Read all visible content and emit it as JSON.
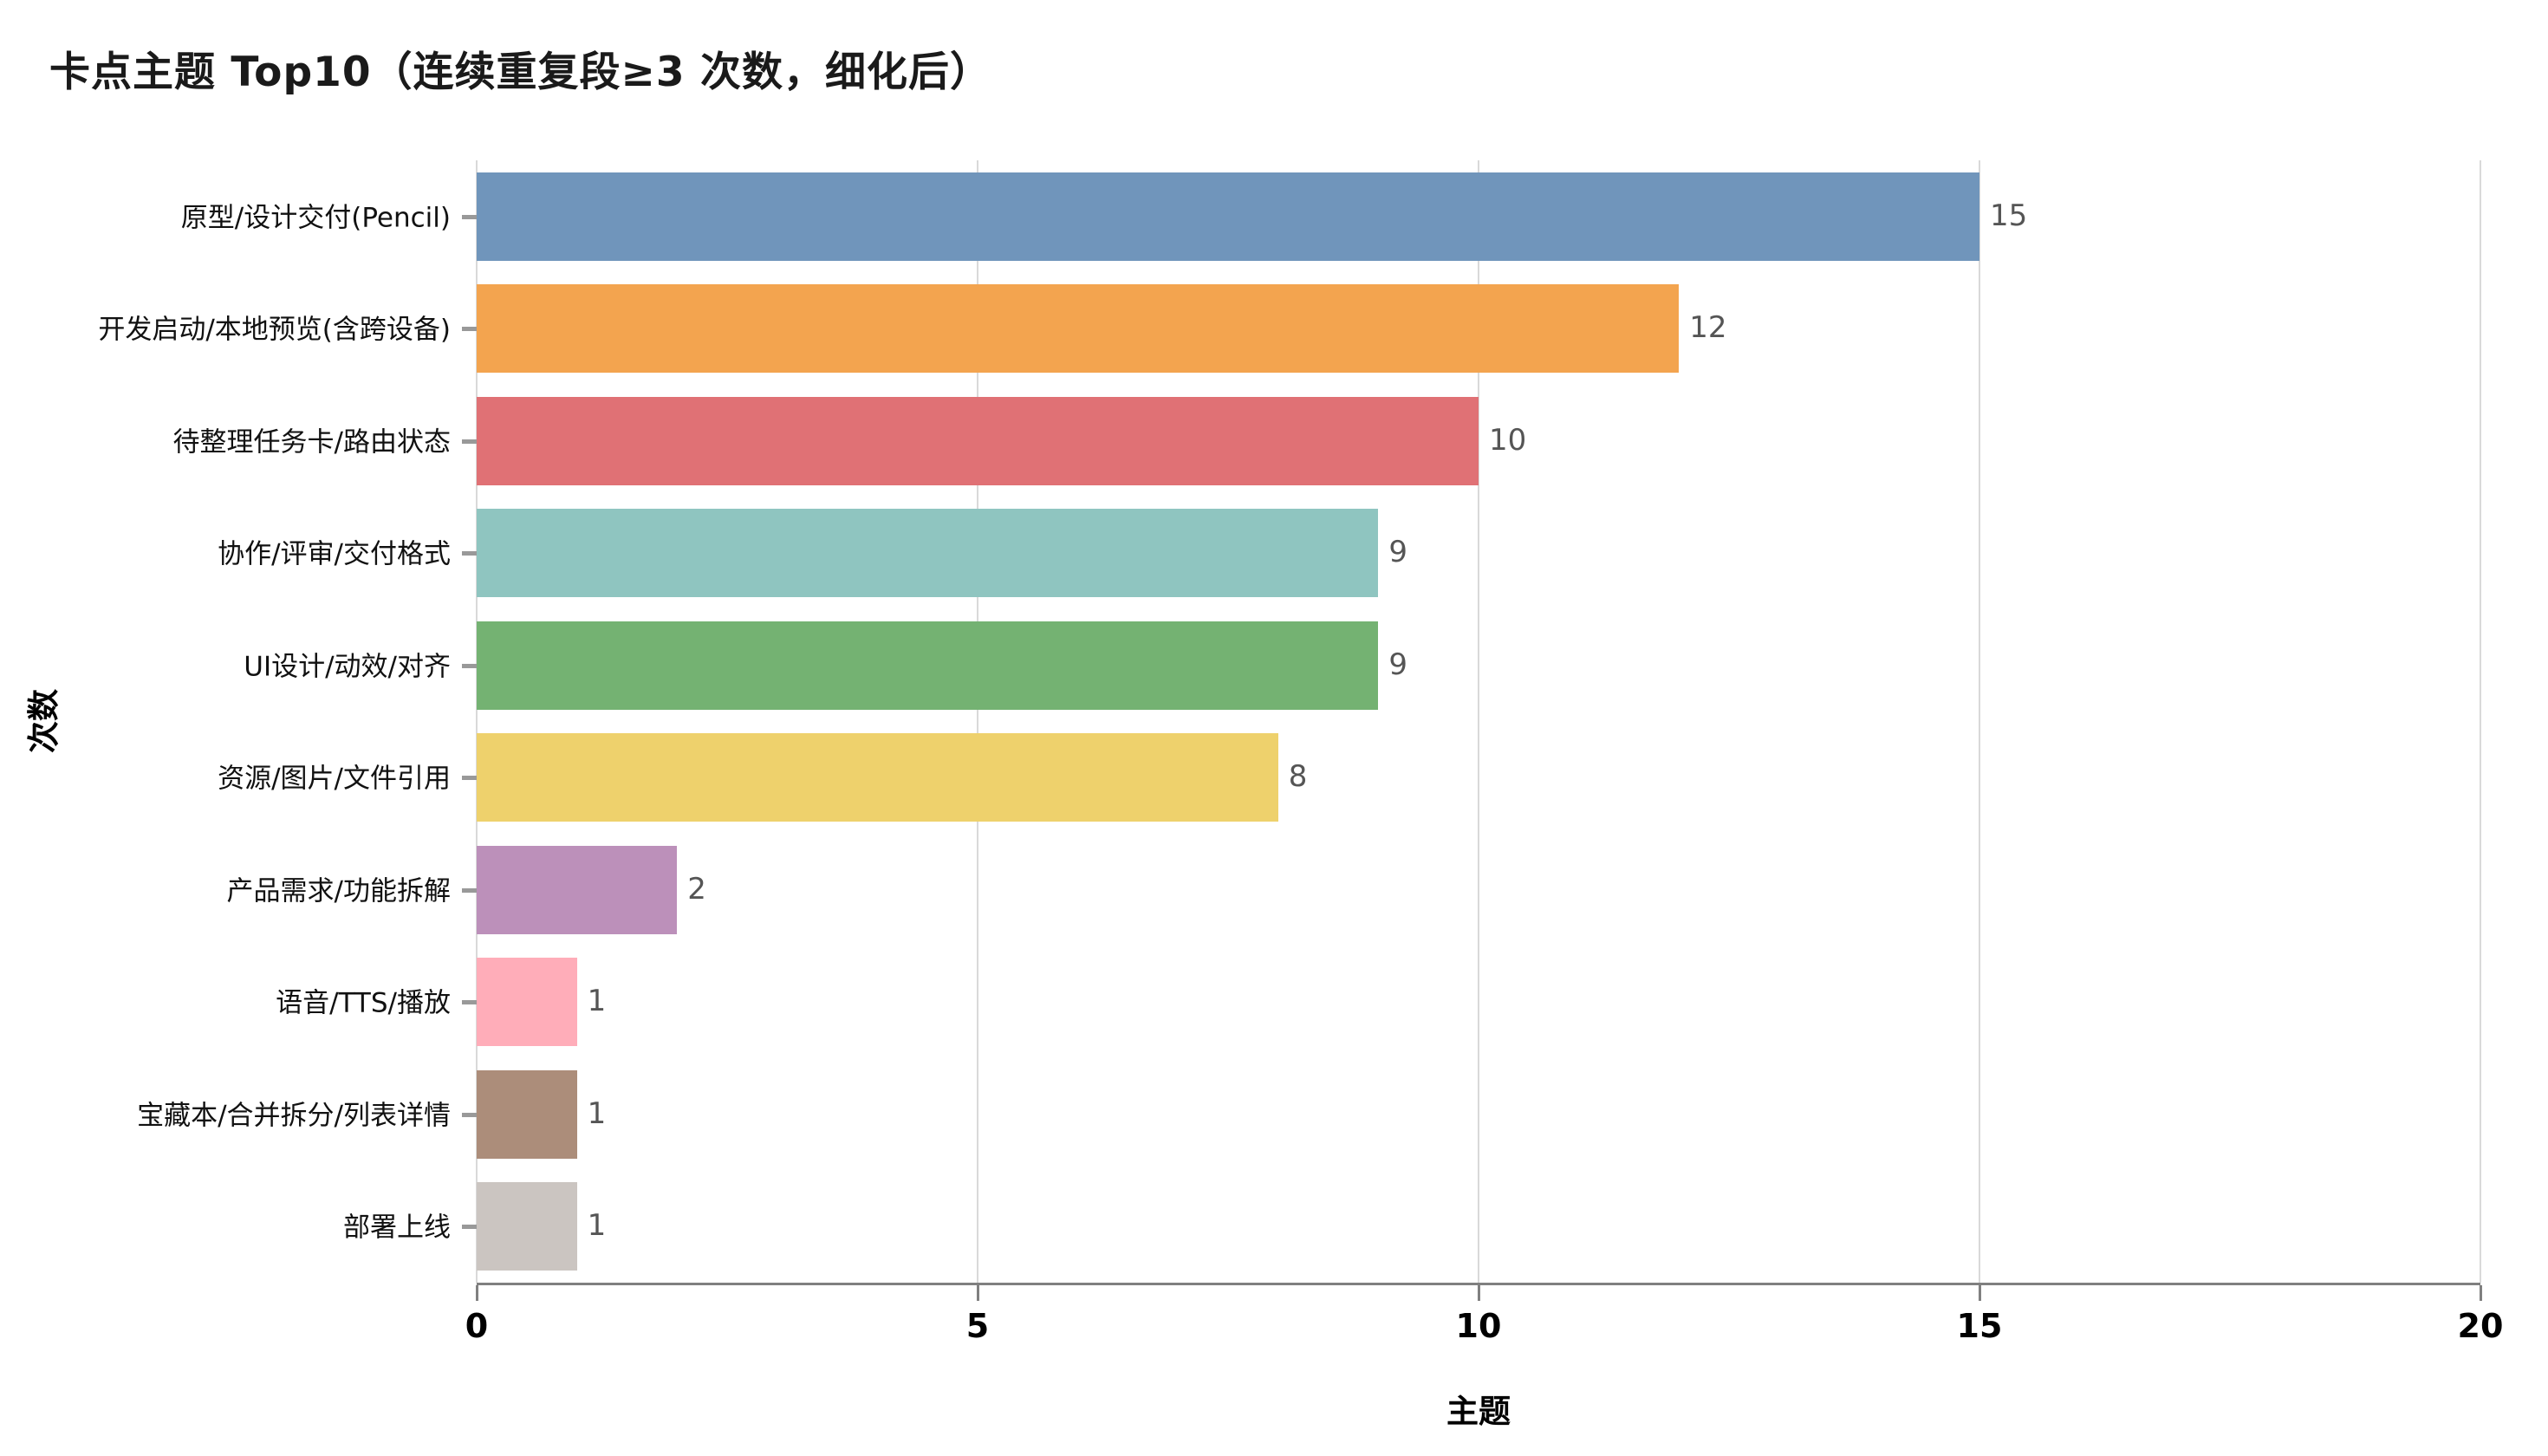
{
  "title": "卡点主题 Top10（连续重复段≥3 次数，细化后）",
  "chart_data": {
    "type": "bar",
    "orientation": "horizontal",
    "title": "卡点主题 Top10（连续重复段≥3 次数，细化后）",
    "xlabel": "主题",
    "ylabel": "次数",
    "xlim": [
      0,
      20
    ],
    "xticks": [
      0,
      5,
      10,
      15,
      20
    ],
    "grid": true,
    "legend": false,
    "categories": [
      "原型/设计交付(Pencil)",
      "开发启动/本地预览(含跨设备)",
      "待整理任务卡/路由状态",
      "协作/评审/交付格式",
      "UI设计/动效/对齐",
      "资源/图片/文件引用",
      "产品需求/功能拆解",
      "语音/TTS/播放",
      "宝藏本/合并拆分/列表详情",
      "部署上线"
    ],
    "values": [
      15,
      12,
      10,
      9,
      9,
      8,
      2,
      1,
      1,
      1
    ],
    "bar_colors": [
      "#7095bb",
      "#f3a44f",
      "#e07175",
      "#8fc5c0",
      "#74b272",
      "#eed16c",
      "#bc90ba",
      "#ffadb9",
      "#ac8d7a",
      "#cbc5c1"
    ],
    "colors": {
      "value_label": "#555555",
      "gridline": "#d9d9d9",
      "axis_line": "#808080",
      "x_tick_mark": "#808080",
      "y_tick_mark": "#999999",
      "tick_label": "#000000",
      "category_label": "#111111",
      "background": "#ffffff"
    }
  }
}
